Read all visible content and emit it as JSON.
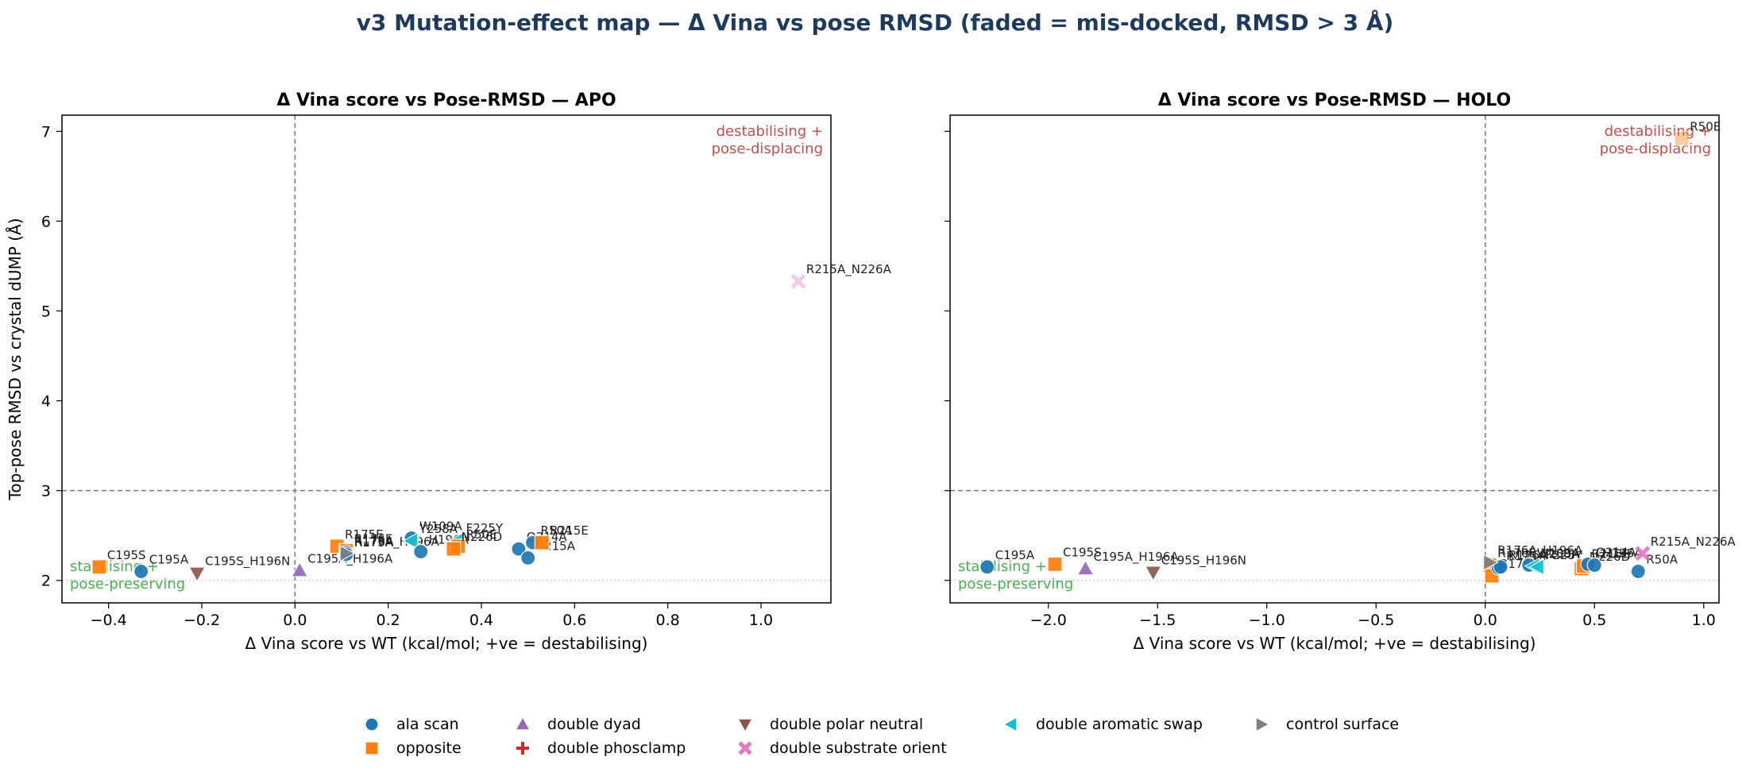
{
  "suptitle": "v3 Mutation-effect map — Δ Vina vs pose RMSD (faded = mis-docked, RMSD > 3 Å)",
  "colors": {
    "ala scan": "#1f77b4",
    "opposite": "#ff7f0e",
    "double dyad": "#9467bd",
    "double phosclamp": "#d62728",
    "double polar neutral": "#8c564b",
    "double substrate orient": "#e377c2",
    "double aromatic swap": "#17becf",
    "control surface": "#7f7f7f",
    "stabilising_text": "#4caf50",
    "destabilising_text": "#c0504d",
    "suptitle": "#1f3a5f"
  },
  "markers": {
    "ala scan": "circle",
    "opposite": "square",
    "double dyad": "triangle-up",
    "double phosclamp": "plus",
    "double polar neutral": "triangle-down",
    "double substrate orient": "x",
    "double aromatic swap": "triangle-left",
    "control surface": "triangle-right"
  },
  "legend": [
    "ala scan",
    "double dyad",
    "double polar neutral",
    "double aromatic swap",
    "control surface",
    "opposite",
    "double phosclamp",
    "double substrate orient"
  ],
  "chart_data": [
    {
      "type": "scatter",
      "title": "Δ Vina score vs Pose-RMSD — APO",
      "xlabel": "Δ Vina score vs WT (kcal/mol; +ve = destabilising)",
      "ylabel": "Top-pose RMSD vs crystal dUMP (Å)",
      "xlim": [
        -0.5,
        1.15
      ],
      "ylim": [
        1.75,
        7.18
      ],
      "xticks": [
        -0.4,
        -0.2,
        0.0,
        0.2,
        0.4,
        0.6,
        0.8,
        1.0
      ],
      "xtick_labels": [
        "−0.4",
        "−0.2",
        "0.0",
        "0.2",
        "0.4",
        "0.6",
        "0.8",
        "1.0"
      ],
      "yticks": [
        2,
        3,
        4,
        5,
        6,
        7
      ],
      "ytick_labels": [
        "2",
        "3",
        "4",
        "5",
        "6",
        "7"
      ],
      "threshold_y": 3,
      "zero_x": 0,
      "annotation_stable": "stabilising +\npose-preserving",
      "annotation_destable": "destabilising +\npose-displacing",
      "points": [
        {
          "label": "C195S",
          "group": "opposite",
          "x": -0.42,
          "y": 2.15
        },
        {
          "label": "C195A",
          "group": "ala scan",
          "x": -0.33,
          "y": 2.1
        },
        {
          "label": "C195S_H196N",
          "group": "double polar neutral",
          "x": -0.21,
          "y": 2.08
        },
        {
          "label": "C195A_H196A",
          "group": "double dyad",
          "x": 0.01,
          "y": 2.11
        },
        {
          "label": "R175E",
          "group": "opposite",
          "x": 0.09,
          "y": 2.38
        },
        {
          "label": "R176E",
          "group": "opposite",
          "x": 0.11,
          "y": 2.33
        },
        {
          "label": "R176A",
          "group": "ala scan",
          "x": 0.11,
          "y": 2.31
        },
        {
          "label": "R175A",
          "group": "ala scan",
          "x": 0.11,
          "y": 2.29
        },
        {
          "label": "R176A_H196A",
          "group": "control surface",
          "x": 0.11,
          "y": 2.3
        },
        {
          "label": "W109A",
          "group": "ala scan",
          "x": 0.25,
          "y": 2.47
        },
        {
          "label": "Y258A",
          "group": "double aromatic swap",
          "x": 0.25,
          "y": 2.44
        },
        {
          "label": "H196A",
          "group": "ala scan",
          "x": 0.27,
          "y": 2.32
        },
        {
          "label": "F225Y",
          "group": "double aromatic swap",
          "x": 0.35,
          "y": 2.45
        },
        {
          "label": "R50E",
          "group": "opposite",
          "x": 0.35,
          "y": 2.38
        },
        {
          "label": "N226D",
          "group": "opposite",
          "x": 0.34,
          "y": 2.35
        },
        {
          "label": "Q214A",
          "group": "ala scan",
          "x": 0.48,
          "y": 2.35
        },
        {
          "label": "R215A",
          "group": "ala scan",
          "x": 0.5,
          "y": 2.25
        },
        {
          "label": "R50A",
          "group": "ala scan",
          "x": 0.51,
          "y": 2.42
        },
        {
          "label": "R215E",
          "group": "opposite",
          "x": 0.53,
          "y": 2.42
        },
        {
          "label": "R215A_N226A",
          "group": "double substrate orient",
          "x": 1.08,
          "y": 5.33,
          "faded": true
        }
      ]
    },
    {
      "type": "scatter",
      "title": "Δ Vina score vs Pose-RMSD — HOLO",
      "xlabel": "Δ Vina score vs WT (kcal/mol; +ve = destabilising)",
      "ylabel": "",
      "xlim": [
        -2.45,
        1.07
      ],
      "ylim": [
        1.75,
        7.18
      ],
      "xticks": [
        -2.0,
        -1.5,
        -1.0,
        -0.5,
        0.0,
        0.5,
        1.0
      ],
      "xtick_labels": [
        "−2.0",
        "−1.5",
        "−1.0",
        "−0.5",
        "0.0",
        "0.5",
        "1.0"
      ],
      "yticks": [
        2,
        3,
        4,
        5,
        6,
        7
      ],
      "ytick_labels": [
        "",
        "",
        "",
        "",
        "",
        ""
      ],
      "threshold_y": 3,
      "zero_x": 0,
      "annotation_stable": "stabilising +\npose-preserving",
      "annotation_destable": "destabilising +\npose-displacing",
      "points": [
        {
          "label": "C195A",
          "group": "ala scan",
          "x": -2.28,
          "y": 2.15
        },
        {
          "label": "C195S",
          "group": "opposite",
          "x": -1.97,
          "y": 2.18
        },
        {
          "label": "C195A_H196A",
          "group": "double dyad",
          "x": -1.83,
          "y": 2.13
        },
        {
          "label": "C195S_H196N",
          "group": "double polar neutral",
          "x": -1.52,
          "y": 2.09
        },
        {
          "label": "R176E",
          "group": "opposite",
          "x": 0.02,
          "y": 2.17
        },
        {
          "label": "R175E",
          "group": "opposite",
          "x": 0.03,
          "y": 2.05
        },
        {
          "label": "R175A",
          "group": "ala scan",
          "x": 0.06,
          "y": 2.14
        },
        {
          "label": "R176A",
          "group": "ala scan",
          "x": 0.07,
          "y": 2.15
        },
        {
          "label": "R176A_H196A",
          "group": "control surface",
          "x": 0.02,
          "y": 2.2
        },
        {
          "label": "W109A",
          "group": "ala scan",
          "x": 0.2,
          "y": 2.17
        },
        {
          "label": "Y258A",
          "group": "double aromatic swap",
          "x": 0.22,
          "y": 2.16
        },
        {
          "label": "F225Y",
          "group": "double aromatic swap",
          "x": 0.24,
          "y": 2.15
        },
        {
          "label": "N226D",
          "group": "opposite",
          "x": 0.44,
          "y": 2.13
        },
        {
          "label": "R215E",
          "group": "opposite",
          "x": 0.45,
          "y": 2.16
        },
        {
          "label": "Q214A",
          "group": "ala scan",
          "x": 0.47,
          "y": 2.18
        },
        {
          "label": "H196A",
          "group": "ala scan",
          "x": 0.5,
          "y": 2.17
        },
        {
          "label": "R50A",
          "group": "ala scan",
          "x": 0.7,
          "y": 2.1
        },
        {
          "label": "R215A_N226A",
          "group": "double substrate orient",
          "x": 0.72,
          "y": 2.3
        },
        {
          "label": "R50E",
          "group": "opposite",
          "x": 0.9,
          "y": 6.92,
          "faded": true
        }
      ]
    }
  ]
}
